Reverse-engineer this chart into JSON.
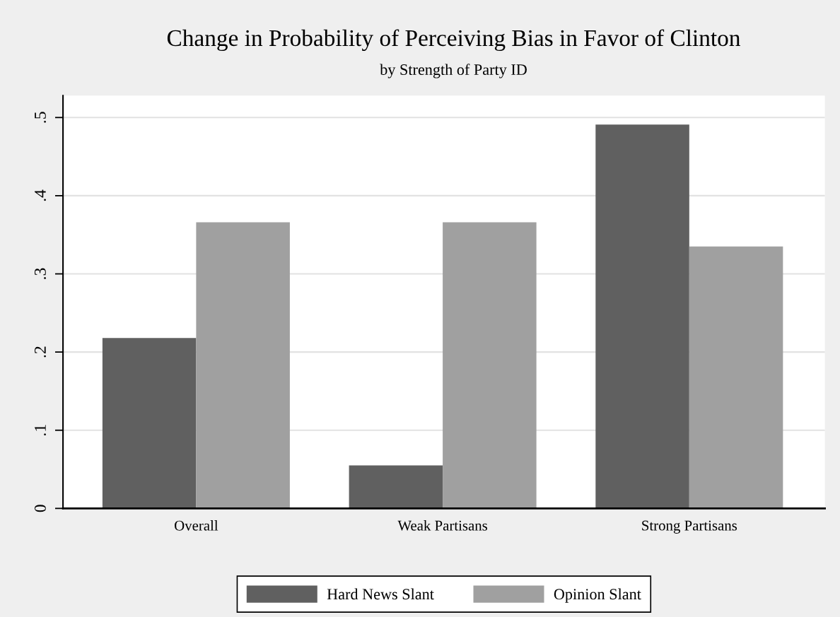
{
  "chart_data": {
    "type": "bar",
    "title": "Change in Probability of Perceiving Bias in Favor of Clinton",
    "subtitle": "by Strength of Party ID",
    "categories": [
      "Overall",
      "Weak Partisans",
      "Strong Partisans"
    ],
    "series": [
      {
        "name": "Hard News Slant",
        "color": "#606060",
        "values": [
          0.218,
          0.055,
          0.491
        ]
      },
      {
        "name": "Opinion Slant",
        "color": "#a0a0a0",
        "values": [
          0.366,
          0.366,
          0.335
        ]
      }
    ],
    "ylim": [
      0,
      0.528
    ],
    "yticks": [
      {
        "value": 0,
        "label": "0"
      },
      {
        "value": 0.1,
        "label": ".1"
      },
      {
        "value": 0.2,
        "label": ".2"
      },
      {
        "value": 0.3,
        "label": ".3"
      },
      {
        "value": 0.4,
        "label": ".4"
      },
      {
        "value": 0.5,
        "label": ".5"
      }
    ],
    "grid": "y",
    "legend": "bottom"
  }
}
